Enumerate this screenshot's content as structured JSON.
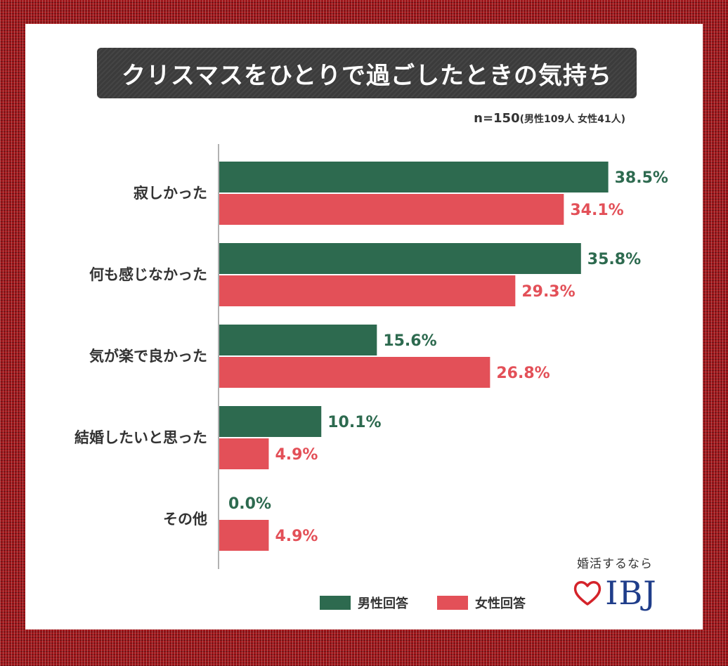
{
  "title": "クリスマスをひとりで過ごしたときの気持ち",
  "sample": {
    "main": "n=150",
    "detail": "(男性109人 女性41人)"
  },
  "legend": {
    "male": "男性回答",
    "female": "女性回答"
  },
  "brand": {
    "tagline": "婚活するなら",
    "logo": "IBJ"
  },
  "colors": {
    "male": "#2d6a4f",
    "female": "#e35058",
    "frame": "#a0161a"
  },
  "chart_data": {
    "type": "bar",
    "orientation": "horizontal",
    "categories": [
      "寂しかった",
      "何も感じなかった",
      "気が楽で良かった",
      "結婚したいと思った",
      "その他"
    ],
    "series": [
      {
        "name": "男性回答",
        "values": [
          38.5,
          35.8,
          15.6,
          10.1,
          0.0
        ]
      },
      {
        "name": "女性回答",
        "values": [
          34.1,
          29.3,
          26.8,
          4.9,
          4.9
        ]
      }
    ],
    "value_labels": {
      "男性回答": [
        "38.5%",
        "35.8%",
        "15.6%",
        "10.1%",
        "0.0%"
      ],
      "女性回答": [
        "34.1%",
        "29.3%",
        "26.8%",
        "4.9%",
        "4.9%"
      ]
    },
    "title": "クリスマスをひとりで過ごしたときの気持ち",
    "grid": false,
    "legend_position": "bottom-center"
  }
}
